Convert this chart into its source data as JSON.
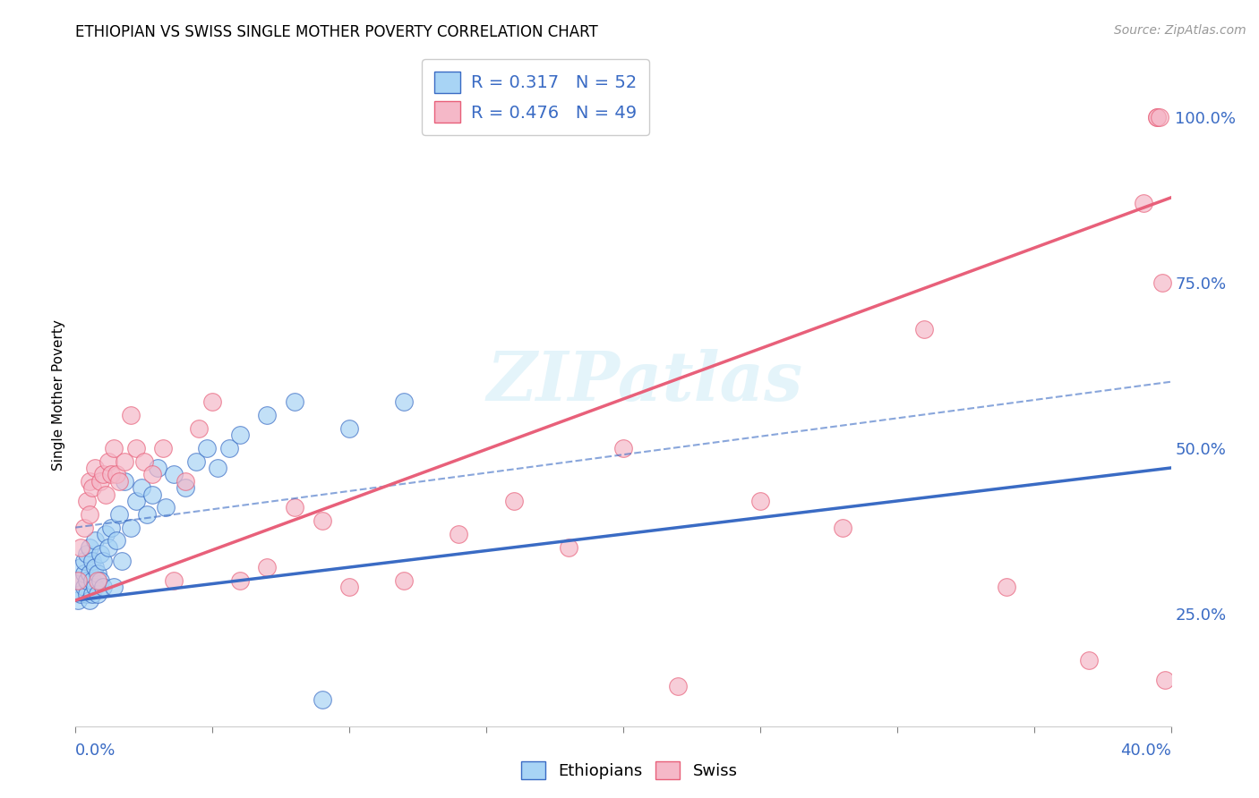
{
  "title": "ETHIOPIAN VS SWISS SINGLE MOTHER POVERTY CORRELATION CHART",
  "source": "Source: ZipAtlas.com",
  "ylabel": "Single Mother Poverty",
  "ytick_labels": [
    "25.0%",
    "50.0%",
    "75.0%",
    "100.0%"
  ],
  "ytick_values": [
    0.25,
    0.5,
    0.75,
    1.0
  ],
  "xlim": [
    0.0,
    0.4
  ],
  "ylim": [
    0.08,
    1.08
  ],
  "eth_color": "#a8d4f5",
  "swiss_color": "#f5b8c8",
  "eth_line_color": "#3a6bc4",
  "swiss_line_color": "#e8607a",
  "dashed_color": "#a8d4f5",
  "background_color": "#FFFFFF",
  "watermark": "ZIPatlas",
  "eth_r": "0.317",
  "eth_n": "52",
  "swiss_r": "0.476",
  "swiss_n": "49",
  "eth_scatter_x": [
    0.001,
    0.001,
    0.002,
    0.002,
    0.003,
    0.003,
    0.003,
    0.004,
    0.004,
    0.004,
    0.005,
    0.005,
    0.005,
    0.006,
    0.006,
    0.006,
    0.007,
    0.007,
    0.007,
    0.008,
    0.008,
    0.009,
    0.009,
    0.01,
    0.01,
    0.011,
    0.012,
    0.013,
    0.014,
    0.015,
    0.016,
    0.017,
    0.018,
    0.02,
    0.022,
    0.024,
    0.026,
    0.028,
    0.03,
    0.033,
    0.036,
    0.04,
    0.044,
    0.048,
    0.052,
    0.056,
    0.06,
    0.07,
    0.08,
    0.09,
    0.1,
    0.12
  ],
  "eth_scatter_y": [
    0.27,
    0.3,
    0.28,
    0.32,
    0.29,
    0.31,
    0.33,
    0.28,
    0.3,
    0.34,
    0.27,
    0.31,
    0.35,
    0.28,
    0.3,
    0.33,
    0.29,
    0.32,
    0.36,
    0.28,
    0.31,
    0.3,
    0.34,
    0.29,
    0.33,
    0.37,
    0.35,
    0.38,
    0.29,
    0.36,
    0.4,
    0.33,
    0.45,
    0.38,
    0.42,
    0.44,
    0.4,
    0.43,
    0.47,
    0.41,
    0.46,
    0.44,
    0.48,
    0.5,
    0.47,
    0.5,
    0.52,
    0.55,
    0.57,
    0.12,
    0.53,
    0.57
  ],
  "swiss_scatter_x": [
    0.001,
    0.002,
    0.003,
    0.004,
    0.005,
    0.005,
    0.006,
    0.007,
    0.008,
    0.009,
    0.01,
    0.011,
    0.012,
    0.013,
    0.014,
    0.015,
    0.016,
    0.018,
    0.02,
    0.022,
    0.025,
    0.028,
    0.032,
    0.036,
    0.04,
    0.045,
    0.05,
    0.06,
    0.07,
    0.08,
    0.09,
    0.1,
    0.12,
    0.14,
    0.16,
    0.18,
    0.2,
    0.22,
    0.25,
    0.28,
    0.31,
    0.34,
    0.37,
    0.39,
    0.395,
    0.395,
    0.396,
    0.397,
    0.398
  ],
  "swiss_scatter_y": [
    0.3,
    0.35,
    0.38,
    0.42,
    0.4,
    0.45,
    0.44,
    0.47,
    0.3,
    0.45,
    0.46,
    0.43,
    0.48,
    0.46,
    0.5,
    0.46,
    0.45,
    0.48,
    0.55,
    0.5,
    0.48,
    0.46,
    0.5,
    0.3,
    0.45,
    0.53,
    0.57,
    0.3,
    0.32,
    0.41,
    0.39,
    0.29,
    0.3,
    0.37,
    0.42,
    0.35,
    0.5,
    0.14,
    0.42,
    0.38,
    0.68,
    0.29,
    0.18,
    0.87,
    1.0,
    1.0,
    1.0,
    0.75,
    0.15
  ]
}
